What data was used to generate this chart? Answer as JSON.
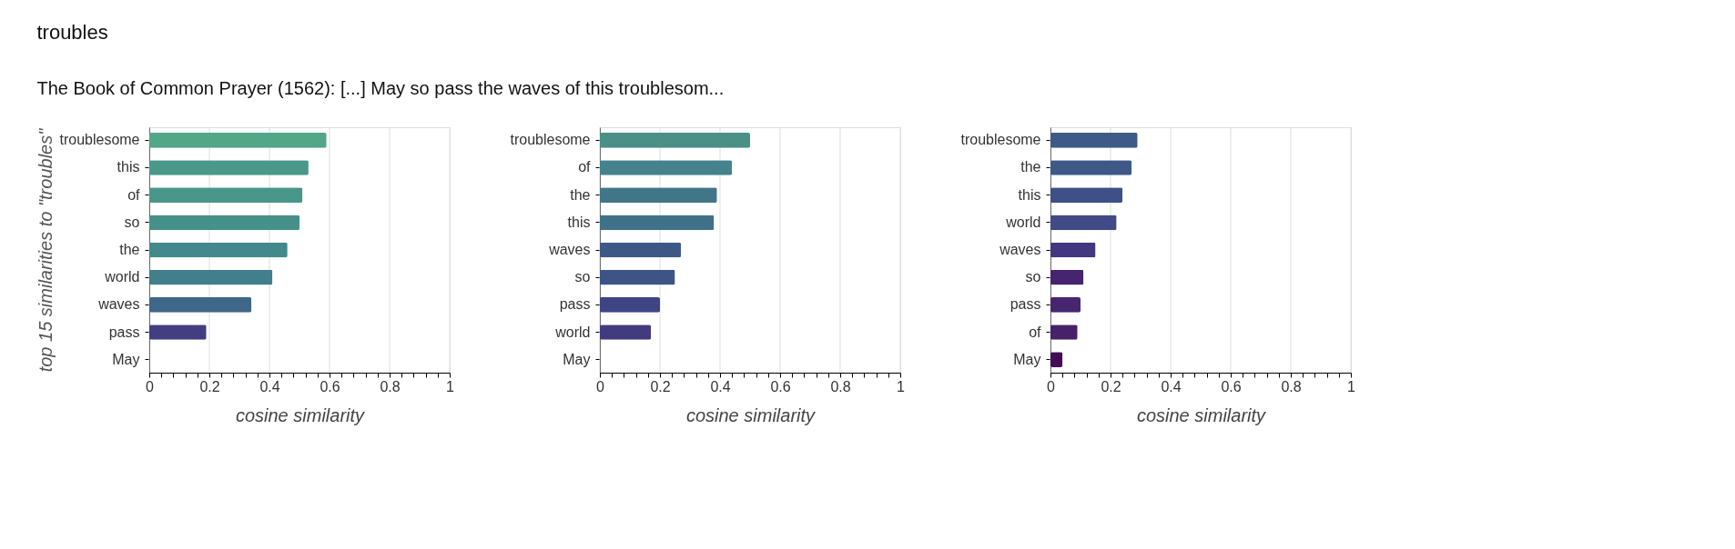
{
  "chart_data": [
    {
      "type": "bar",
      "orientation": "horizontal",
      "title": "troubles",
      "subtitle": "The Book of Common Prayer (1562): [...] May so pass the waves of this troublesom...",
      "ylabel": "top 15 similarities to \"troubles\"",
      "xlabel": "cosine similarity",
      "grid": "x",
      "categories": [
        "troublesome",
        "this",
        "of",
        "so",
        "the",
        "world",
        "waves",
        "pass",
        "May"
      ],
      "values": [
        0.59,
        0.53,
        0.51,
        0.5,
        0.46,
        0.41,
        0.34,
        0.19,
        0
      ],
      "colors": [
        "#52a788",
        "#4a9889",
        "#49968a",
        "#46908a",
        "#43898b",
        "#417f8c",
        "#3f6789",
        "#433e82",
        "#440154"
      ],
      "xlim": [
        0,
        1
      ],
      "xticks": [
        0,
        {
          "value": 0.04,
          "label": null
        },
        {
          "value": 0.08,
          "label": null
        },
        {
          "value": 0.12,
          "label": null
        },
        {
          "value": 0.16,
          "label": null
        },
        0.2,
        {
          "value": 0.24,
          "label": null
        },
        {
          "value": 0.28,
          "label": null
        },
        {
          "value": 0.32,
          "label": null
        },
        {
          "value": 0.36,
          "label": null
        },
        0.4,
        {
          "value": 0.44,
          "label": null
        },
        {
          "value": 0.48,
          "label": null
        },
        {
          "value": 0.52,
          "label": null
        },
        {
          "value": 0.56,
          "label": null
        },
        0.6,
        {
          "value": 0.64,
          "label": null
        },
        {
          "value": 0.68,
          "label": null
        },
        {
          "value": 0.72,
          "label": null
        },
        {
          "value": 0.76,
          "label": null
        },
        0.8,
        {
          "value": 0.84,
          "label": null
        },
        {
          "value": 0.88,
          "label": null
        },
        {
          "value": 0.92,
          "label": null
        },
        {
          "value": 0.96,
          "label": null
        },
        1
      ]
    },
    {
      "type": "bar",
      "orientation": "horizontal",
      "xlabel": "cosine similarity",
      "grid": "x",
      "categories": [
        "troublesome",
        "of",
        "the",
        "this",
        "waves",
        "so",
        "pass",
        "world",
        "May"
      ],
      "values": [
        0.5,
        0.44,
        0.39,
        0.38,
        0.27,
        0.25,
        0.2,
        0.17,
        0
      ],
      "colors": [
        "#4a9087",
        "#44838b",
        "#417689",
        "#3f7289",
        "#3e5886",
        "#3e5487",
        "#3f4584",
        "#433b80",
        "#440154"
      ],
      "xlim": [
        0,
        1
      ],
      "xticks": [
        0,
        {
          "value": 0.04,
          "label": null
        },
        {
          "value": 0.08,
          "label": null
        },
        {
          "value": 0.12,
          "label": null
        },
        {
          "value": 0.16,
          "label": null
        },
        0.2,
        {
          "value": 0.24,
          "label": null
        },
        {
          "value": 0.28,
          "label": null
        },
        {
          "value": 0.32,
          "label": null
        },
        {
          "value": 0.36,
          "label": null
        },
        0.4,
        {
          "value": 0.44,
          "label": null
        },
        {
          "value": 0.48,
          "label": null
        },
        {
          "value": 0.52,
          "label": null
        },
        {
          "value": 0.56,
          "label": null
        },
        0.6,
        {
          "value": 0.64,
          "label": null
        },
        {
          "value": 0.68,
          "label": null
        },
        {
          "value": 0.72,
          "label": null
        },
        {
          "value": 0.76,
          "label": null
        },
        0.8,
        {
          "value": 0.84,
          "label": null
        },
        {
          "value": 0.88,
          "label": null
        },
        {
          "value": 0.92,
          "label": null
        },
        {
          "value": 0.96,
          "label": null
        },
        1
      ]
    },
    {
      "type": "bar",
      "orientation": "horizontal",
      "xlabel": "cosine similarity",
      "grid": "x",
      "categories": [
        "troublesome",
        "the",
        "this",
        "world",
        "waves",
        "so",
        "pass",
        "of",
        "May"
      ],
      "values": [
        0.29,
        0.27,
        0.24,
        0.22,
        0.15,
        0.11,
        0.1,
        0.09,
        0.04
      ],
      "colors": [
        "#3e5b88",
        "#3e5988",
        "#3f5088",
        "#3f4a87",
        "#433880",
        "#46246f",
        "#46266f",
        "#47226b",
        "#440c56"
      ],
      "xlim": [
        0,
        1
      ],
      "xticks": [
        0,
        {
          "value": 0.04,
          "label": null
        },
        {
          "value": 0.08,
          "label": null
        },
        {
          "value": 0.12,
          "label": null
        },
        {
          "value": 0.16,
          "label": null
        },
        0.2,
        {
          "value": 0.24,
          "label": null
        },
        {
          "value": 0.28,
          "label": null
        },
        {
          "value": 0.32,
          "label": null
        },
        {
          "value": 0.36,
          "label": null
        },
        0.4,
        {
          "value": 0.44,
          "label": null
        },
        {
          "value": 0.48,
          "label": null
        },
        {
          "value": 0.52,
          "label": null
        },
        {
          "value": 0.56,
          "label": null
        },
        0.6,
        {
          "value": 0.64,
          "label": null
        },
        {
          "value": 0.68,
          "label": null
        },
        {
          "value": 0.72,
          "label": null
        },
        {
          "value": 0.76,
          "label": null
        },
        0.8,
        {
          "value": 0.84,
          "label": null
        },
        {
          "value": 0.88,
          "label": null
        },
        {
          "value": 0.92,
          "label": null
        },
        {
          "value": 0.96,
          "label": null
        },
        1
      ]
    }
  ]
}
